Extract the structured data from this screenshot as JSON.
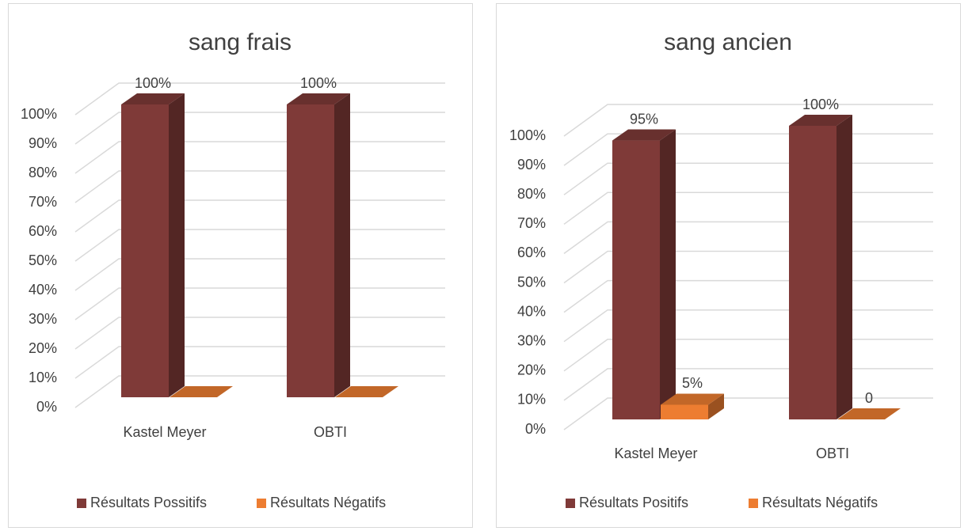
{
  "chart_data": [
    {
      "type": "bar3d",
      "title": "sang frais",
      "categories": [
        "Kastel Meyer",
        "OBTI"
      ],
      "series": [
        {
          "name": "Résultats Possitifs",
          "color": "#7f3a38",
          "values": [
            100,
            100
          ],
          "value_labels": [
            "100%",
            "100%"
          ]
        },
        {
          "name": "Résultats Négatifs",
          "color": "#ed7d31",
          "values": [
            0,
            0
          ]
        }
      ],
      "ylim": [
        0,
        100
      ],
      "yticks": [
        {
          "value": 0,
          "label": "0%"
        },
        {
          "value": 10,
          "label": "10%"
        },
        {
          "value": 20,
          "label": "20%"
        },
        {
          "value": 30,
          "label": "30%"
        },
        {
          "value": 40,
          "label": "40%"
        },
        {
          "value": 50,
          "label": "50%"
        },
        {
          "value": 60,
          "label": "60%"
        },
        {
          "value": 70,
          "label": "70%"
        },
        {
          "value": 80,
          "label": "80%"
        },
        {
          "value": 90,
          "label": "90%"
        },
        {
          "value": 100,
          "label": "100%"
        }
      ],
      "grid": true,
      "legend": "bottom"
    },
    {
      "type": "bar3d",
      "title": "sang ancien",
      "categories": [
        "Kastel Meyer",
        "OBTI"
      ],
      "series": [
        {
          "name": "Résultats Positifs",
          "color": "#7f3a38",
          "values": [
            95,
            100
          ],
          "value_labels": [
            "95%",
            "100%"
          ]
        },
        {
          "name": "Résultats Négatifs",
          "color": "#ed7d31",
          "values": [
            5,
            0
          ],
          "value_labels": [
            "5%",
            "0"
          ]
        }
      ],
      "ylim": [
        0,
        100
      ],
      "yticks": [
        {
          "value": 0,
          "label": "0%"
        },
        {
          "value": 10,
          "label": "10%"
        },
        {
          "value": 20,
          "label": "20%"
        },
        {
          "value": 30,
          "label": "30%"
        },
        {
          "value": 40,
          "label": "40%"
        },
        {
          "value": 50,
          "label": "50%"
        },
        {
          "value": 60,
          "label": "60%"
        },
        {
          "value": 70,
          "label": "70%"
        },
        {
          "value": 80,
          "label": "80%"
        },
        {
          "value": 90,
          "label": "90%"
        },
        {
          "value": 100,
          "label": "100%"
        }
      ],
      "grid": true,
      "legend": "bottom"
    }
  ]
}
